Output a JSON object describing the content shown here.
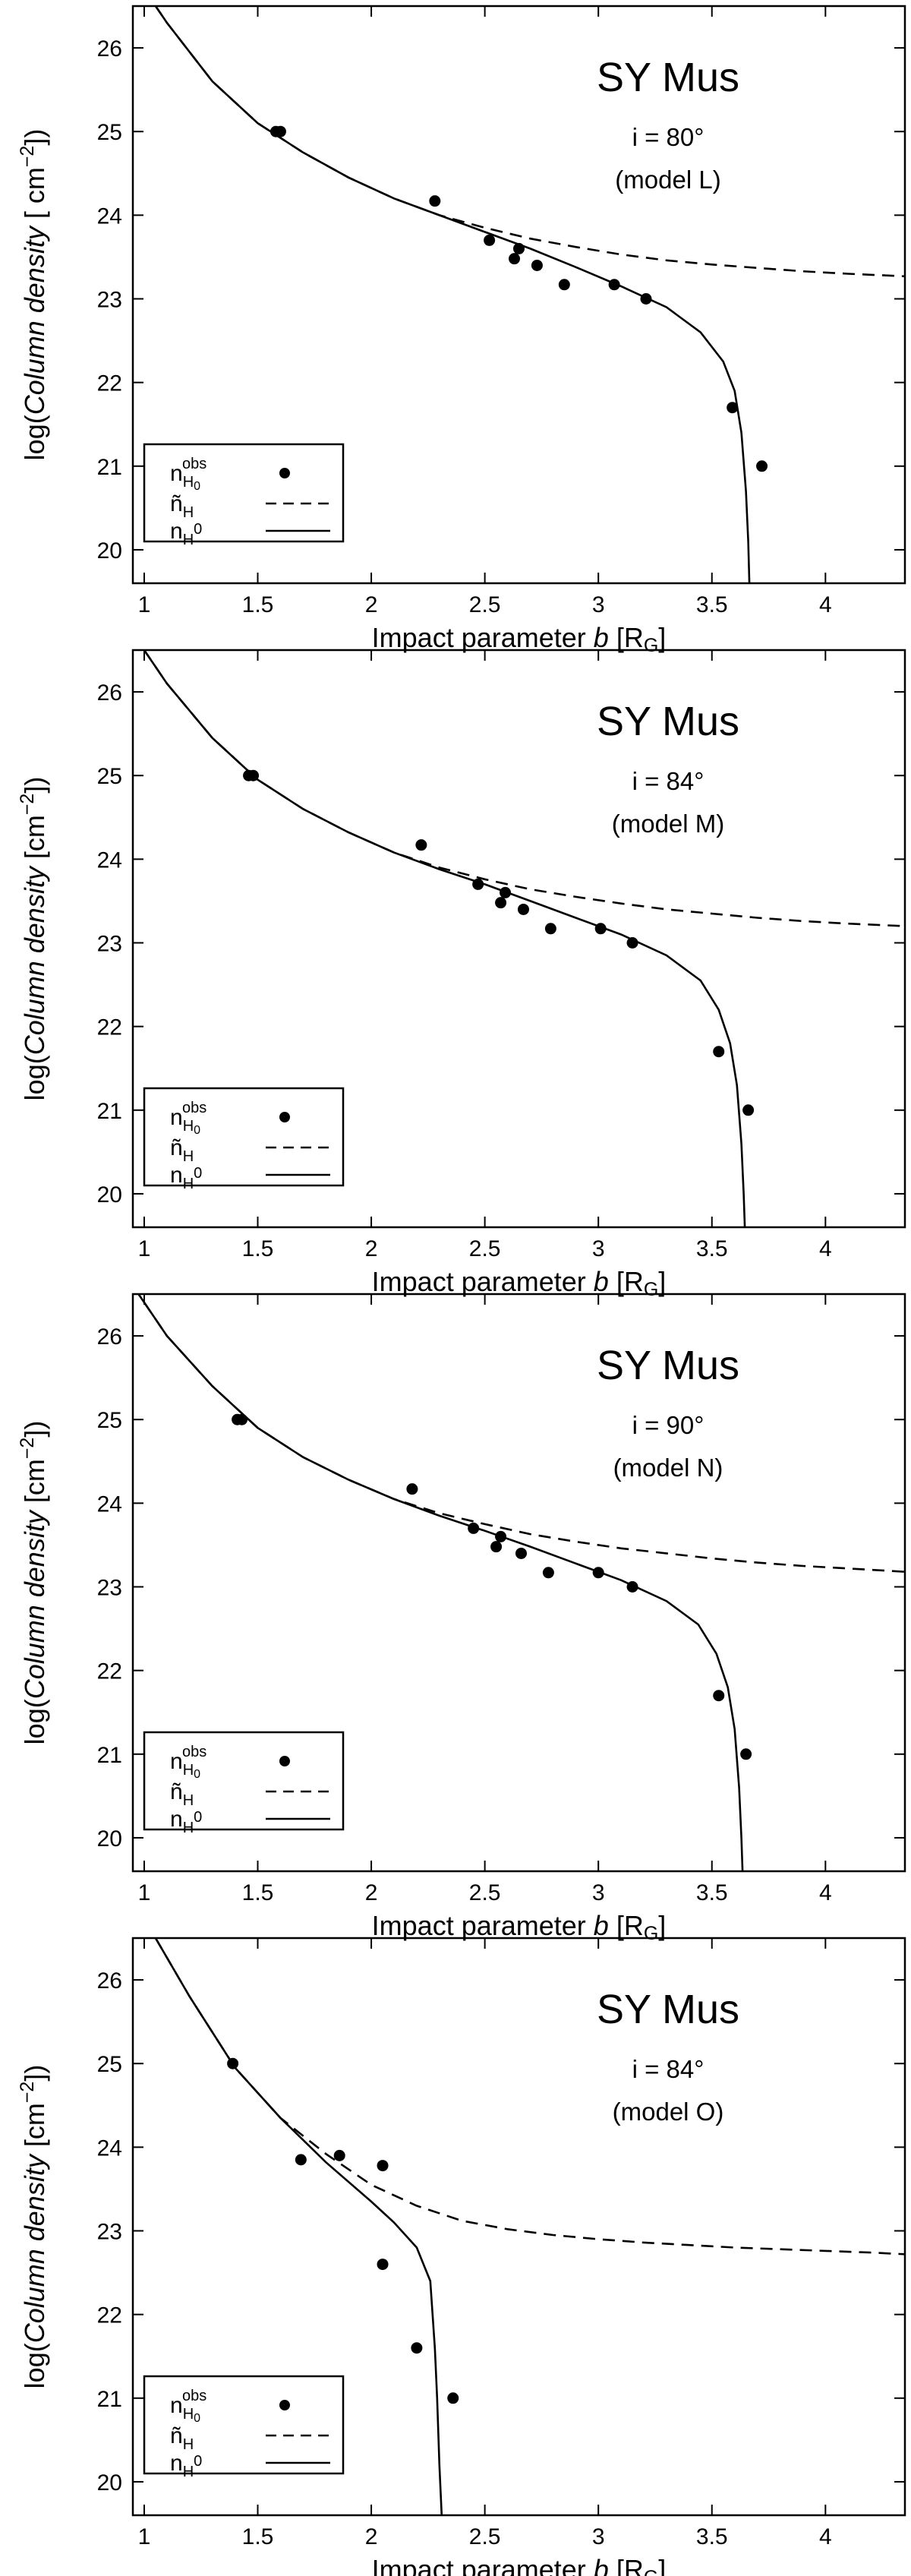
{
  "chart_data": [
    {
      "type": "line",
      "title": "SY Mus",
      "inclination_label": "i = 80°",
      "model_label": "(model L)",
      "xlabel_prefix": "Impact parameter ",
      "xlabel_var": "b",
      "xlabel_unit": "R",
      "xlabel_unit_sub": "G",
      "ylabel_prefix": "log(",
      "ylabel_var": "Column density",
      "ylabel_unit": " [ cm",
      "ylabel_exp": "−2",
      "ylabel_close": "])",
      "xlim": [
        0.95,
        4.35
      ],
      "ylim": [
        19.6,
        26.5
      ],
      "xticks": [
        1,
        1.5,
        2,
        2.5,
        3,
        3.5,
        4
      ],
      "xtick_labels": [
        "1",
        "1.5",
        "2",
        "2.5",
        "3",
        "3.5",
        "4"
      ],
      "yticks": [
        20,
        21,
        22,
        23,
        24,
        25,
        26
      ],
      "ytick_labels": [
        "20",
        "21",
        "22",
        "23",
        "24",
        "25",
        "26"
      ],
      "legend": {
        "position": "bottom-left",
        "entries": [
          {
            "base": "n",
            "sub": "H",
            "sub2": "0",
            "sup": "obs",
            "style": "points"
          },
          {
            "base": "ñ",
            "sub": "H",
            "style": "dashed"
          },
          {
            "base": "n",
            "sub": "H",
            "sup_after": "0",
            "style": "solid"
          }
        ]
      },
      "series": [
        {
          "name": "n_H0 obs",
          "style": "points",
          "x": [
            1.58,
            1.6,
            2.28,
            2.52,
            2.63,
            2.65,
            2.73,
            2.85,
            3.07,
            3.21,
            3.59,
            3.72
          ],
          "y": [
            25.0,
            25.0,
            24.17,
            23.7,
            23.48,
            23.6,
            23.4,
            23.17,
            23.17,
            23.0,
            21.7,
            21.0
          ]
        },
        {
          "name": "ñ_H",
          "style": "dashed",
          "x": [
            0.95,
            1.1,
            1.3,
            1.5,
            1.7,
            1.9,
            2.1,
            2.3,
            2.5,
            2.7,
            2.9,
            3.1,
            3.3,
            3.5,
            3.7,
            3.9,
            4.1,
            4.35
          ],
          "y": [
            26.9,
            26.3,
            25.6,
            25.1,
            24.75,
            24.45,
            24.2,
            24.0,
            23.85,
            23.72,
            23.62,
            23.53,
            23.46,
            23.41,
            23.37,
            23.33,
            23.3,
            23.27
          ]
        },
        {
          "name": "n_H0",
          "style": "solid",
          "x": [
            0.95,
            1.1,
            1.3,
            1.5,
            1.7,
            1.9,
            2.1,
            2.3,
            2.5,
            2.7,
            2.9,
            3.1,
            3.3,
            3.45,
            3.55,
            3.6,
            3.63,
            3.65,
            3.66,
            3.665
          ],
          "y": [
            26.9,
            26.3,
            25.6,
            25.1,
            24.75,
            24.45,
            24.2,
            24.0,
            23.8,
            23.6,
            23.38,
            23.15,
            22.9,
            22.6,
            22.25,
            21.9,
            21.4,
            20.7,
            20.1,
            19.6
          ]
        }
      ]
    },
    {
      "type": "line",
      "title": "SY Mus",
      "inclination_label": "i = 84°",
      "model_label": "(model M)",
      "xlabel_prefix": "Impact parameter ",
      "xlabel_var": "b",
      "xlabel_unit": "R",
      "xlabel_unit_sub": "G",
      "ylabel_prefix": "log(",
      "ylabel_var": "Column density",
      "ylabel_unit": " [cm",
      "ylabel_exp": "−2",
      "ylabel_close": "])",
      "xlim": [
        0.95,
        4.35
      ],
      "ylim": [
        19.6,
        26.5
      ],
      "xticks": [
        1,
        1.5,
        2,
        2.5,
        3,
        3.5,
        4
      ],
      "xtick_labels": [
        "1",
        "1.5",
        "2",
        "2.5",
        "3",
        "3.5",
        "4"
      ],
      "yticks": [
        20,
        21,
        22,
        23,
        24,
        25,
        26
      ],
      "ytick_labels": [
        "20",
        "21",
        "22",
        "23",
        "24",
        "25",
        "26"
      ],
      "legend": {
        "position": "bottom-left",
        "entries": [
          {
            "base": "n",
            "sub": "H",
            "sub2": "0",
            "sup": "obs",
            "style": "points"
          },
          {
            "base": "ñ",
            "sub": "H",
            "style": "dashed"
          },
          {
            "base": "n",
            "sub": "H",
            "sup_after": "0",
            "style": "solid"
          }
        ]
      },
      "series": [
        {
          "name": "n_H0 obs",
          "style": "points",
          "x": [
            1.46,
            1.48,
            2.22,
            2.47,
            2.57,
            2.59,
            2.67,
            2.79,
            3.01,
            3.15,
            3.53,
            3.66
          ],
          "y": [
            25.0,
            25.0,
            24.17,
            23.7,
            23.48,
            23.6,
            23.4,
            23.17,
            23.17,
            23.0,
            21.7,
            21.0
          ]
        },
        {
          "name": "ñ_H",
          "style": "dashed",
          "x": [
            0.95,
            1.1,
            1.3,
            1.5,
            1.7,
            1.9,
            2.1,
            2.3,
            2.5,
            2.7,
            2.9,
            3.1,
            3.3,
            3.5,
            3.7,
            3.9,
            4.1,
            4.35
          ],
          "y": [
            26.7,
            26.1,
            25.45,
            24.95,
            24.6,
            24.32,
            24.08,
            23.9,
            23.76,
            23.64,
            23.55,
            23.47,
            23.4,
            23.35,
            23.3,
            23.26,
            23.23,
            23.2
          ]
        },
        {
          "name": "n_H0",
          "style": "solid",
          "x": [
            0.95,
            1.1,
            1.3,
            1.5,
            1.7,
            1.9,
            2.1,
            2.3,
            2.5,
            2.7,
            2.9,
            3.1,
            3.3,
            3.45,
            3.53,
            3.58,
            3.61,
            3.63,
            3.64,
            3.645
          ],
          "y": [
            26.7,
            26.1,
            25.45,
            24.95,
            24.6,
            24.32,
            24.08,
            23.88,
            23.7,
            23.5,
            23.3,
            23.1,
            22.85,
            22.55,
            22.2,
            21.8,
            21.3,
            20.6,
            20.0,
            19.6
          ]
        }
      ]
    },
    {
      "type": "line",
      "title": "SY Mus",
      "inclination_label": "i = 90°",
      "model_label": "(model N)",
      "xlabel_prefix": "Impact parameter ",
      "xlabel_var": "b",
      "xlabel_unit": "R",
      "xlabel_unit_sub": "G",
      "ylabel_prefix": "log(",
      "ylabel_var": "Column density",
      "ylabel_unit": " [cm",
      "ylabel_exp": "−2",
      "ylabel_close": "])",
      "xlim": [
        0.95,
        4.35
      ],
      "ylim": [
        19.6,
        26.5
      ],
      "xticks": [
        1,
        1.5,
        2,
        2.5,
        3,
        3.5,
        4
      ],
      "xtick_labels": [
        "1",
        "1.5",
        "2",
        "2.5",
        "3",
        "3.5",
        "4"
      ],
      "yticks": [
        20,
        21,
        22,
        23,
        24,
        25,
        26
      ],
      "ytick_labels": [
        "20",
        "21",
        "22",
        "23",
        "24",
        "25",
        "26"
      ],
      "legend": {
        "position": "bottom-left",
        "entries": [
          {
            "base": "n",
            "sub": "H",
            "sub2": "0",
            "sup": "obs",
            "style": "points"
          },
          {
            "base": "ñ",
            "sub": "H",
            "style": "dashed"
          },
          {
            "base": "n",
            "sub": "H",
            "sup_after": "0",
            "style": "solid"
          }
        ]
      },
      "series": [
        {
          "name": "n_H0 obs",
          "style": "points",
          "x": [
            1.41,
            1.43,
            2.18,
            2.45,
            2.55,
            2.57,
            2.66,
            2.78,
            3.0,
            3.15,
            3.53,
            3.65
          ],
          "y": [
            25.0,
            25.0,
            24.17,
            23.7,
            23.48,
            23.6,
            23.4,
            23.17,
            23.17,
            23.0,
            21.7,
            21.0
          ]
        },
        {
          "name": "ñ_H",
          "style": "dashed",
          "x": [
            0.95,
            1.1,
            1.3,
            1.5,
            1.7,
            1.9,
            2.1,
            2.3,
            2.5,
            2.7,
            2.9,
            3.1,
            3.3,
            3.5,
            3.7,
            3.9,
            4.1,
            4.35
          ],
          "y": [
            26.6,
            26.0,
            25.4,
            24.9,
            24.55,
            24.28,
            24.05,
            23.88,
            23.75,
            23.63,
            23.54,
            23.46,
            23.4,
            23.34,
            23.29,
            23.25,
            23.22,
            23.18
          ]
        },
        {
          "name": "n_H0",
          "style": "solid",
          "x": [
            0.95,
            1.1,
            1.3,
            1.5,
            1.7,
            1.9,
            2.1,
            2.3,
            2.5,
            2.7,
            2.9,
            3.1,
            3.3,
            3.44,
            3.52,
            3.57,
            3.6,
            3.62,
            3.63,
            3.635
          ],
          "y": [
            26.6,
            26.0,
            25.4,
            24.9,
            24.55,
            24.28,
            24.05,
            23.85,
            23.67,
            23.48,
            23.28,
            23.08,
            22.83,
            22.55,
            22.2,
            21.8,
            21.3,
            20.6,
            20.0,
            19.6
          ]
        }
      ]
    },
    {
      "type": "line",
      "title": "SY Mus",
      "inclination_label": "i = 84°",
      "model_label": "(model O)",
      "xlabel_prefix": "Impact parameter ",
      "xlabel_var": "b",
      "xlabel_unit": "R",
      "xlabel_unit_sub": "G",
      "ylabel_prefix": "log(",
      "ylabel_var": "Column density",
      "ylabel_unit": " [cm",
      "ylabel_exp": "−2",
      "ylabel_close": "])",
      "xlim": [
        0.95,
        4.35
      ],
      "ylim": [
        19.6,
        26.5
      ],
      "xticks": [
        1,
        1.5,
        2,
        2.5,
        3,
        3.5,
        4
      ],
      "xtick_labels": [
        "1",
        "1.5",
        "2",
        "2.5",
        "3",
        "3.5",
        "4"
      ],
      "yticks": [
        20,
        21,
        22,
        23,
        24,
        25,
        26
      ],
      "ytick_labels": [
        "20",
        "21",
        "22",
        "23",
        "24",
        "25",
        "26"
      ],
      "legend": {
        "position": "bottom-left",
        "entries": [
          {
            "base": "n",
            "sub": "H",
            "sub2": "0",
            "sup": "obs",
            "style": "points"
          },
          {
            "base": "ñ",
            "sub": "H",
            "style": "dashed"
          },
          {
            "base": "n",
            "sub": "H",
            "sup_after": "0",
            "style": "solid"
          }
        ]
      },
      "series": [
        {
          "name": "n_H0 obs",
          "style": "points",
          "x": [
            1.39,
            1.69,
            1.86,
            2.05,
            2.05,
            2.2,
            2.36
          ],
          "y": [
            25.0,
            23.85,
            23.9,
            23.78,
            22.6,
            21.6,
            21.0
          ]
        },
        {
          "name": "ñ_H",
          "style": "dashed",
          "x": [
            1.05,
            1.2,
            1.4,
            1.6,
            1.8,
            2.0,
            2.2,
            2.4,
            2.6,
            2.8,
            3.0,
            3.2,
            3.4,
            3.6,
            3.8,
            4.0,
            4.2,
            4.35
          ],
          "y": [
            26.5,
            25.8,
            24.95,
            24.35,
            23.92,
            23.55,
            23.3,
            23.12,
            23.02,
            22.95,
            22.9,
            22.86,
            22.83,
            22.8,
            22.78,
            22.76,
            22.74,
            22.72
          ]
        },
        {
          "name": "n_H0",
          "style": "solid",
          "x": [
            1.05,
            1.2,
            1.4,
            1.6,
            1.8,
            2.0,
            2.1,
            2.2,
            2.26,
            2.28,
            2.29,
            2.3,
            2.31
          ],
          "y": [
            26.5,
            25.8,
            24.95,
            24.35,
            23.82,
            23.35,
            23.1,
            22.8,
            22.4,
            21.6,
            21.0,
            20.2,
            19.6
          ]
        }
      ]
    }
  ]
}
